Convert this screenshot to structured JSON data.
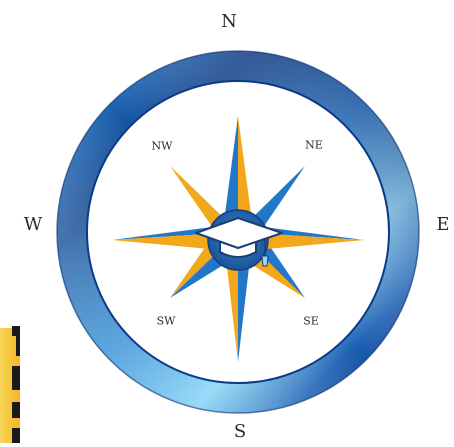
{
  "compass": {
    "cardinals": {
      "north": "N",
      "south": "S",
      "west": "W",
      "east": "E"
    },
    "intercardinals": {
      "northwest": "NW",
      "northeast": "NE",
      "southwest": "SW",
      "southeast": "SE"
    },
    "center_icon": "graduation-cap-icon"
  },
  "colors": {
    "ring_dark": "#0b3a86",
    "ring_mid": "#2f86d6",
    "ring_light": "#7fd0f3",
    "star_blue": "#2277c9",
    "star_gold": "#f2a81a",
    "hub_blue": "#1f5fa8",
    "card_yellow": "#f7cf45"
  }
}
